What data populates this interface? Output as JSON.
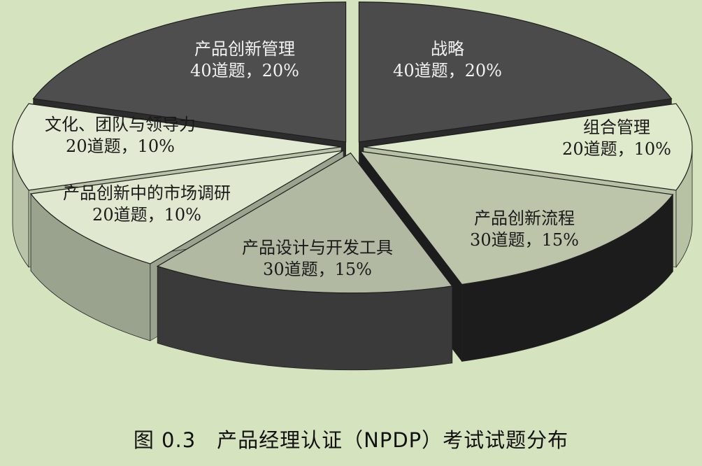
{
  "chart_data": {
    "type": "pie",
    "style": "3d-exploded",
    "unit": "道题",
    "slices": [
      {
        "name": "战略",
        "count": 40,
        "percent": 20,
        "count_label": "40道题，20%",
        "color": "#4b4b4b",
        "side_color": "#2a2a2a",
        "label_tone": "light"
      },
      {
        "name": "组合管理",
        "count": 20,
        "percent": 10,
        "count_label": "20道题，10%",
        "color": "#dfe9cc",
        "side_color": "#b7c2a4",
        "label_tone": "dark"
      },
      {
        "name": "产品创新流程",
        "count": 30,
        "percent": 15,
        "count_label": "30道题，15%",
        "color": "#bcc4aa",
        "side_color": "#1c1c1c",
        "label_tone": "dark"
      },
      {
        "name": "产品设计与开发工具",
        "count": 30,
        "percent": 15,
        "count_label": "30道题，15%",
        "color": "#b2b9a3",
        "side_color": "#3a3a3a",
        "label_tone": "dark"
      },
      {
        "name": "产品创新中的市场调研",
        "count": 20,
        "percent": 10,
        "count_label": "20道题，10%",
        "color": "#e0e8d0",
        "side_color": "#9aa38e",
        "label_tone": "dark"
      },
      {
        "name": "文化、团队与领导力",
        "count": 20,
        "percent": 10,
        "count_label": "20道题，10%",
        "color": "#e2ead3",
        "side_color": "#b9c3a8",
        "label_tone": "dark"
      },
      {
        "name": "产品创新管理",
        "count": 40,
        "percent": 20,
        "count_label": "40道题，20%",
        "color": "#4e4e4e",
        "side_color": "#2c2c2c",
        "label_tone": "light"
      }
    ],
    "caption": "图 0.3　产品经理认证（NPDP）考试试题分布"
  }
}
